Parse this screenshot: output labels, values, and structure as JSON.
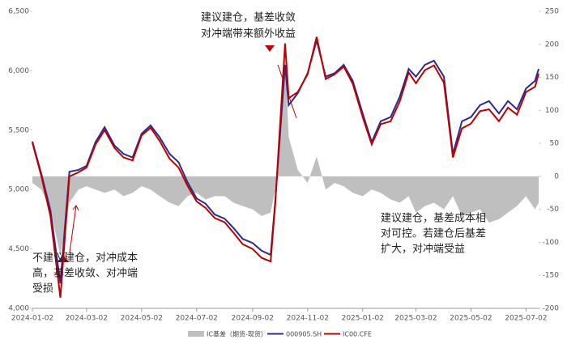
{
  "chart_data": {
    "type": "line",
    "x": [
      "2024-01-02",
      "2024-01-12",
      "2024-01-22",
      "2024-02-02",
      "2024-02-12",
      "2024-02-22",
      "2024-03-02",
      "2024-03-12",
      "2024-03-22",
      "2024-04-02",
      "2024-04-12",
      "2024-04-22",
      "2024-05-02",
      "2024-05-12",
      "2024-05-22",
      "2024-06-02",
      "2024-06-12",
      "2024-06-22",
      "2024-07-02",
      "2024-07-12",
      "2024-07-22",
      "2024-08-02",
      "2024-08-12",
      "2024-08-22",
      "2024-09-02",
      "2024-09-12",
      "2024-09-22",
      "2024-09-27",
      "2024-10-08",
      "2024-10-12",
      "2024-10-22",
      "2024-11-02",
      "2024-11-12",
      "2024-11-22",
      "2024-12-02",
      "2024-12-12",
      "2024-12-22",
      "2025-01-02",
      "2025-01-12",
      "2025-01-22",
      "2025-02-02",
      "2025-02-12",
      "2025-02-22",
      "2025-03-02",
      "2025-03-12",
      "2025-03-22",
      "2025-04-02",
      "2025-04-12",
      "2025-04-22",
      "2025-05-02",
      "2025-05-12",
      "2025-05-22",
      "2025-06-02",
      "2025-06-12",
      "2025-06-22",
      "2025-07-02",
      "2025-07-12",
      "2025-07-16"
    ],
    "series": [
      {
        "name": "IC基差（期货-现货）",
        "kind": "area",
        "axis": "y2",
        "color": "#bfbfbf",
        "values": [
          -10,
          -20,
          -50,
          -120,
          -40,
          -20,
          -15,
          -20,
          -25,
          -20,
          -30,
          -25,
          -15,
          -20,
          -30,
          -40,
          -45,
          -30,
          -25,
          -35,
          -30,
          -30,
          -40,
          -45,
          -50,
          -60,
          -55,
          -20,
          180,
          60,
          10,
          -10,
          30,
          -20,
          -10,
          -15,
          -25,
          -30,
          -20,
          -25,
          -35,
          -40,
          -30,
          -55,
          -45,
          -40,
          -50,
          -30,
          -60,
          -55,
          -50,
          -70,
          -65,
          -55,
          -45,
          -30,
          -50,
          -40
        ]
      },
      {
        "name": "000905.SH",
        "kind": "line",
        "color": "#2b2b8f",
        "values": [
          5404,
          5130,
          4825,
          4210,
          5150,
          5165,
          5200,
          5400,
          5525,
          5370,
          5300,
          5270,
          5470,
          5540,
          5440,
          5300,
          5230,
          5060,
          4925,
          4880,
          4790,
          4755,
          4675,
          4585,
          4550,
          4485,
          4450,
          4890,
          6050,
          5710,
          5810,
          5980,
          6255,
          5950,
          5980,
          6050,
          5915,
          5640,
          5400,
          5575,
          5610,
          5780,
          6015,
          5950,
          6050,
          6085,
          5950,
          5300,
          5575,
          5610,
          5710,
          5745,
          5640,
          5745,
          5675,
          5850,
          5915,
          6015
        ]
      },
      {
        "name": "IC00.CFE",
        "kind": "line",
        "color": "#c00000",
        "values": [
          5394,
          5110,
          4775,
          4090,
          5110,
          5145,
          5185,
          5380,
          5500,
          5350,
          5270,
          5245,
          5455,
          5520,
          5410,
          5260,
          5185,
          5030,
          4900,
          4845,
          4760,
          4725,
          4635,
          4540,
          4500,
          4425,
          4395,
          4870,
          6230,
          5770,
          5820,
          5970,
          6285,
          5930,
          5970,
          6035,
          5890,
          5610,
          5380,
          5550,
          5575,
          5740,
          5985,
          5895,
          6005,
          6045,
          5900,
          5270,
          5515,
          5555,
          5660,
          5675,
          5575,
          5690,
          5630,
          5820,
          5865,
          5975
        ]
      }
    ],
    "xlim": [
      "2024-01-02",
      "2025-07-16"
    ],
    "xticks": [
      "2024-01-02",
      "2024-03-02",
      "2024-05-02",
      "2024-07-02",
      "2024-09-02",
      "2024-11-02",
      "2025-01-02",
      "2025-03-02",
      "2025-05-02",
      "2025-07-02"
    ],
    "ylim": [
      4000,
      6500
    ],
    "yticks": [
      {
        "value": 4000,
        "label": "4,000"
      },
      {
        "value": 4500,
        "label": "4,500"
      },
      {
        "value": 5000,
        "label": "5,000"
      },
      {
        "value": 5500,
        "label": "5,500"
      },
      {
        "value": 6000,
        "label": "6,000"
      },
      {
        "value": 6500,
        "label": "6,500"
      }
    ],
    "y2lim": [
      -200,
      250
    ],
    "y2ticks": [
      -200,
      -150,
      -100,
      -50,
      0,
      50,
      100,
      150,
      200,
      250
    ],
    "annotations": [
      {
        "lines": [
          "建议建仓，基差收敛",
          "对冲端带来额外收益"
        ]
      },
      {
        "lines": [
          "建议建仓，基差成本相",
          "对可控。若建仓后基差",
          "扩大，对冲端受益"
        ]
      },
      {
        "lines": [
          "不建议建仓，对冲成本",
          "高，基差收敛、对冲端",
          "受损"
        ]
      }
    ]
  }
}
